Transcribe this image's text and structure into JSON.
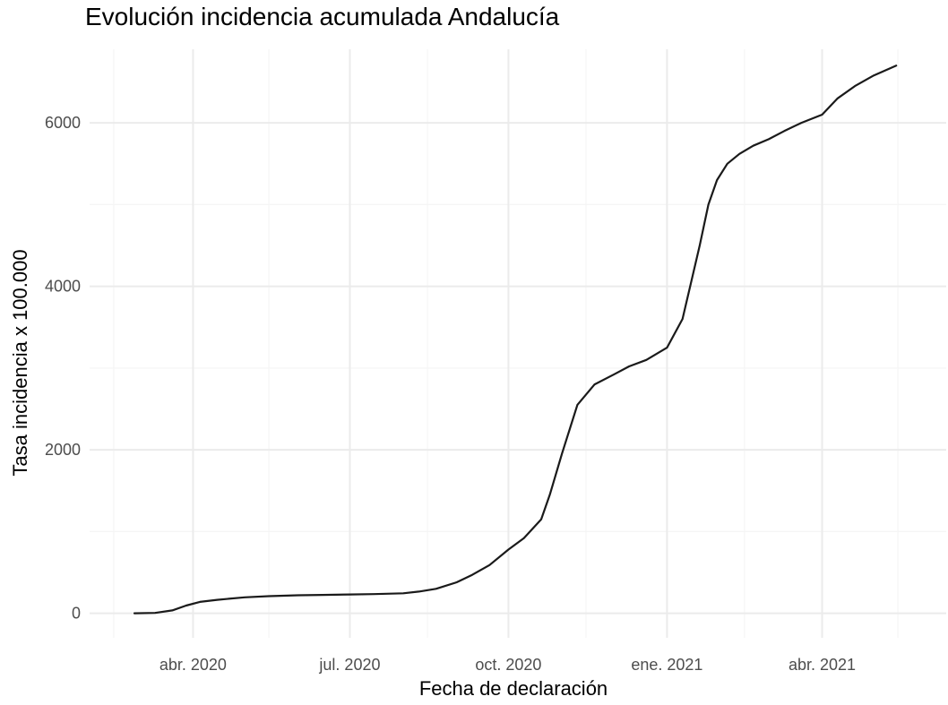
{
  "chart_data": {
    "type": "line",
    "title": "Evolución incidencia acumulada Andalucía",
    "xlabel": "Fecha de declaración",
    "ylabel": "Tasa incidencia x 100.000",
    "x_type": "date",
    "xlim": [
      "2020-02-01",
      "2021-06-12"
    ],
    "ylim": [
      -300,
      6900
    ],
    "x_ticks": [
      {
        "date": "2020-04-01",
        "label": "abr. 2020"
      },
      {
        "date": "2020-07-01",
        "label": "jul. 2020"
      },
      {
        "date": "2020-10-01",
        "label": "oct. 2020"
      },
      {
        "date": "2021-01-01",
        "label": "ene. 2021"
      },
      {
        "date": "2021-04-01",
        "label": "abr. 2021"
      }
    ],
    "x_minor_ticks": [
      "2020-02-15",
      "2020-05-15",
      "2020-08-15",
      "2020-11-15",
      "2021-02-15",
      "2021-05-15"
    ],
    "y_ticks": [
      {
        "value": 0,
        "label": "0"
      },
      {
        "value": 2000,
        "label": "2000"
      },
      {
        "value": 4000,
        "label": "4000"
      },
      {
        "value": 6000,
        "label": "6000"
      }
    ],
    "y_minor_ticks": [
      1000,
      3000,
      5000
    ],
    "grid": true,
    "legend": "none",
    "colors": {
      "line": "#1a1a1a",
      "grid_major": "#ebebeb",
      "grid_minor": "#f5f5f5",
      "tick_text": "#4d4d4d",
      "title_text": "#000000"
    },
    "series": [
      {
        "x": [
          "2020-02-27",
          "2020-03-10",
          "2020-03-20",
          "2020-03-28",
          "2020-04-05",
          "2020-04-15",
          "2020-05-01",
          "2020-05-15",
          "2020-06-01",
          "2020-06-15",
          "2020-07-01",
          "2020-07-15",
          "2020-08-01",
          "2020-08-10",
          "2020-08-20",
          "2020-09-01",
          "2020-09-10",
          "2020-09-20",
          "2020-10-01",
          "2020-10-10",
          "2020-10-20",
          "2020-10-25",
          "2020-11-01",
          "2020-11-10",
          "2020-11-20",
          "2020-12-01",
          "2020-12-10",
          "2020-12-20",
          "2021-01-01",
          "2021-01-10",
          "2021-01-15",
          "2021-01-20",
          "2021-01-25",
          "2021-01-30",
          "2021-02-05",
          "2021-02-12",
          "2021-02-20",
          "2021-03-01",
          "2021-03-10",
          "2021-03-20",
          "2021-04-01",
          "2021-04-10",
          "2021-04-20",
          "2021-05-01",
          "2021-05-14"
        ],
        "y": [
          0,
          5,
          35,
          95,
          140,
          165,
          195,
          210,
          220,
          225,
          230,
          235,
          245,
          265,
          300,
          380,
          470,
          590,
          780,
          920,
          1150,
          1450,
          1950,
          2550,
          2800,
          2920,
          3020,
          3100,
          3250,
          3600,
          4050,
          4500,
          5000,
          5300,
          5500,
          5620,
          5720,
          5800,
          5900,
          6000,
          6100,
          6300,
          6450,
          6580,
          6700
        ]
      }
    ]
  }
}
